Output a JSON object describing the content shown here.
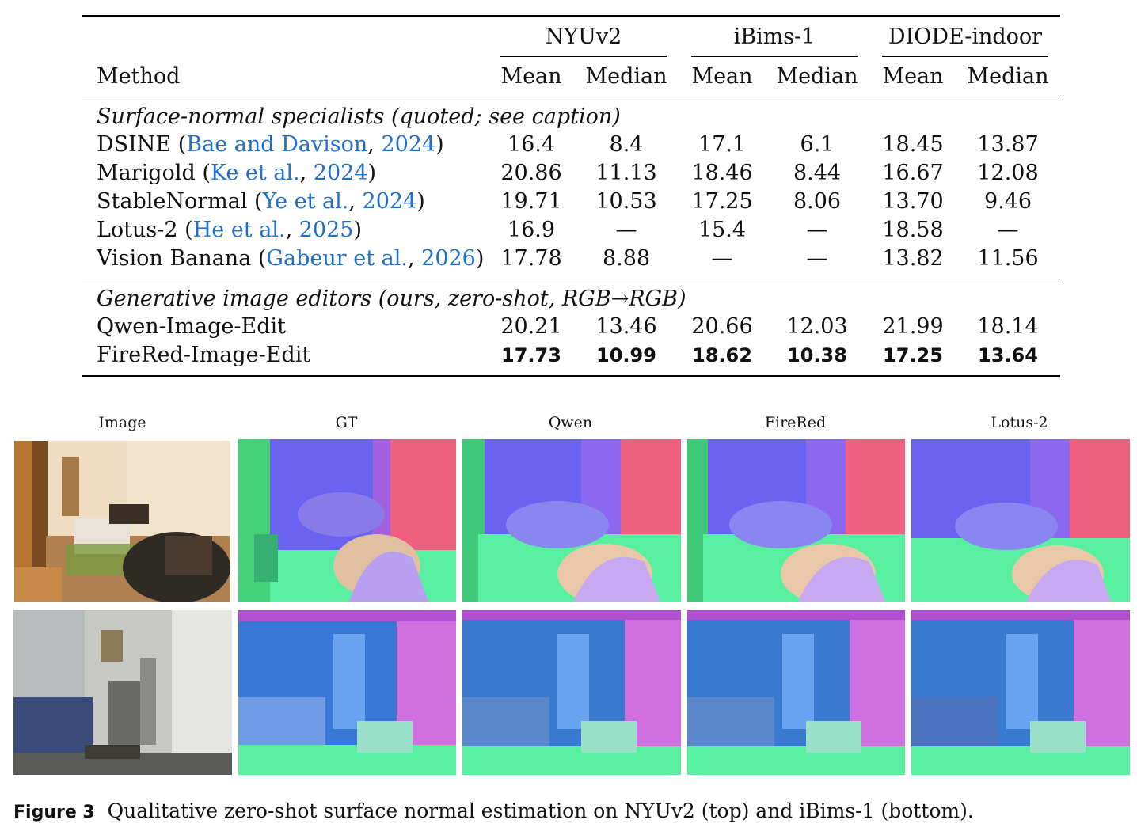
{
  "table": {
    "header": {
      "method_label": "Method",
      "datasets": [
        "NYUv2",
        "iBims-1",
        "DIODE-indoor"
      ],
      "subcols": [
        "Mean",
        "Median",
        "Mean",
        "Median",
        "Mean",
        "Median"
      ]
    },
    "group1_title": "Surface-normal specialists (quoted; see caption)",
    "group1_rows": [
      {
        "name": "DSINE",
        "open": " (",
        "cite_a": "Bae and Davison",
        "sep": ", ",
        "cite_y": "2024",
        "close": ")",
        "values": [
          "16.4",
          "8.4",
          "17.1",
          "6.1",
          "18.45",
          "13.87"
        ]
      },
      {
        "name": "Marigold",
        "open": " (",
        "cite_a": "Ke et al.",
        "sep": ", ",
        "cite_y": "2024",
        "close": ")",
        "values": [
          "20.86",
          "11.13",
          "18.46",
          "8.44",
          "16.67",
          "12.08"
        ]
      },
      {
        "name": "StableNormal",
        "open": " (",
        "cite_a": "Ye et al.",
        "sep": ", ",
        "cite_y": "2024",
        "close": ")",
        "values": [
          "19.71",
          "10.53",
          "17.25",
          "8.06",
          "13.70",
          "9.46"
        ]
      },
      {
        "name": "Lotus-2",
        "open": " (",
        "cite_a": "He et al.",
        "sep": ", ",
        "cite_y": "2025",
        "close": ")",
        "values": [
          "16.9",
          "—",
          "15.4",
          "—",
          "18.58",
          "—"
        ]
      },
      {
        "name": "Vision Banana",
        "open": " (",
        "cite_a": "Gabeur et al.",
        "sep": ", ",
        "cite_y": "2026",
        "close": ")",
        "values": [
          "17.78",
          "8.88",
          "—",
          "—",
          "13.82",
          "11.56"
        ]
      }
    ],
    "group2_title": "Generative image editors (ours, zero-shot, RGB→RGB)",
    "group2_rows": [
      {
        "name": "Qwen-Image-Edit",
        "values": [
          "20.21",
          "13.46",
          "20.66",
          "12.03",
          "21.99",
          "18.14"
        ],
        "bold": false
      },
      {
        "name": "FireRed-Image-Edit",
        "values": [
          "17.73",
          "10.99",
          "18.62",
          "10.38",
          "17.25",
          "13.64"
        ],
        "bold": true
      }
    ]
  },
  "figure": {
    "column_labels": [
      "Image",
      "GT",
      "Qwen",
      "FireRed",
      "Lotus-2"
    ],
    "caption_tag": "Figure 3",
    "caption_text": "Qualitative zero-shot surface normal estimation on NYUv2 (top) and iBims-1 (bottom).",
    "colors": {
      "link": "#1f6fd1",
      "normal_pink": "#f0607e",
      "normal_blue": "#6a62f0",
      "normal_green": "#58f0a0"
    }
  }
}
